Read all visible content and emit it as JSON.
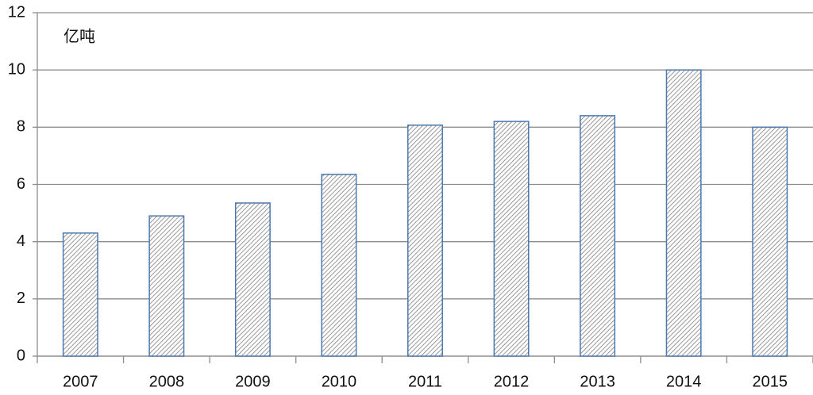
{
  "chart_data": {
    "type": "bar",
    "y_label": "亿吨",
    "categories": [
      "2007",
      "2008",
      "2009",
      "2010",
      "2011",
      "2012",
      "2013",
      "2014",
      "2015"
    ],
    "values": [
      4.3,
      4.9,
      5.35,
      6.35,
      8.07,
      8.2,
      8.4,
      10,
      8.0
    ],
    "color": "#4a78b0",
    "ylim": [
      0,
      12
    ],
    "yticks": [
      0,
      2,
      4,
      6,
      8,
      10,
      12
    ],
    "grid": true
  }
}
